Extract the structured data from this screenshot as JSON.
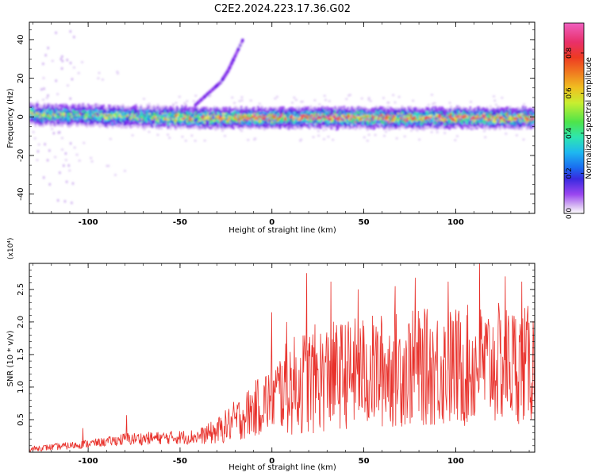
{
  "title": "C2E2.2024.223.17.36.G02",
  "colors": {
    "snr_line": "#e8302a",
    "frame": "#000000",
    "colormap": [
      "#ffffff",
      "#d6b8f2",
      "#9a46f0",
      "#6a18e6",
      "#2a3fe0",
      "#1eb7f0",
      "#2ee6b0",
      "#4ee44a",
      "#e8ee30",
      "#f0a020",
      "#ee3a22",
      "#e8306a",
      "#f060c0"
    ]
  },
  "chart_data": [
    {
      "type": "heatmap",
      "title": "C2E2.2024.223.17.36.G02",
      "xlabel": "Height of straight line (km)",
      "ylabel": "Frequency (Hz)",
      "xlim": [
        -132,
        143
      ],
      "ylim": [
        -50,
        49
      ],
      "xticks": [
        -100,
        -50,
        0,
        50,
        100
      ],
      "yticks": [
        -40,
        -20,
        0,
        20,
        40
      ],
      "colorbar": {
        "label": "Normalized spectral amplitude",
        "range": [
          0.0,
          0.95
        ],
        "ticks": [
          "0.0",
          "0.2",
          "0.4",
          "0.6",
          "0.8"
        ]
      },
      "features": {
        "band_center_hz": 0,
        "band_halfwidth_hz": 6,
        "high_amplitude_band_hz": [
          -2,
          2
        ],
        "side_branch": [
          {
            "x": -42,
            "y": 6
          },
          {
            "x": -35,
            "y": 12
          },
          {
            "x": -28,
            "y": 18
          },
          {
            "x": -24,
            "y": 24
          },
          {
            "x": -21,
            "y": 30
          },
          {
            "x": -16,
            "y": 40
          }
        ]
      }
    },
    {
      "type": "line",
      "xlabel": "Height of straight line (km)",
      "ylabel": "SNR (10 * v/v)",
      "y_multiplier": "(x10⁴)",
      "xlim": [
        -132,
        143
      ],
      "ylim": [
        0,
        2.9
      ],
      "xticks": [
        -100,
        -50,
        0,
        50,
        100
      ],
      "yticks": [
        "0.5",
        "1.0",
        "1.5",
        "2.0",
        "2.5"
      ],
      "envelope": {
        "x": [
          -132,
          -110,
          -90,
          -80,
          -60,
          -40,
          -30,
          -20,
          -10,
          0,
          5,
          10,
          20,
          40,
          60,
          80,
          100,
          120,
          143
        ],
        "mean": [
          0.05,
          0.1,
          0.16,
          0.2,
          0.22,
          0.24,
          0.32,
          0.48,
          0.65,
          0.85,
          0.95,
          1.0,
          1.1,
          1.2,
          1.25,
          1.3,
          1.3,
          1.35,
          1.35
        ],
        "spread": [
          0.04,
          0.06,
          0.07,
          0.1,
          0.1,
          0.12,
          0.2,
          0.32,
          0.42,
          0.55,
          0.65,
          0.75,
          0.85,
          0.85,
          0.9,
          0.9,
          0.95,
          0.95,
          0.9
        ]
      },
      "peaks": [
        {
          "x": -103,
          "y": 0.37
        },
        {
          "x": -79,
          "y": 0.57
        },
        {
          "x": 0,
          "y": 2.15
        },
        {
          "x": 8,
          "y": 2.0
        },
        {
          "x": 19,
          "y": 2.75
        },
        {
          "x": 32,
          "y": 2.62
        },
        {
          "x": 47,
          "y": 2.5
        },
        {
          "x": 67,
          "y": 2.55
        },
        {
          "x": 78,
          "y": 2.68
        },
        {
          "x": 96,
          "y": 2.62
        },
        {
          "x": 113,
          "y": 2.9
        },
        {
          "x": 127,
          "y": 2.7
        },
        {
          "x": 136,
          "y": 2.62
        }
      ]
    }
  ]
}
